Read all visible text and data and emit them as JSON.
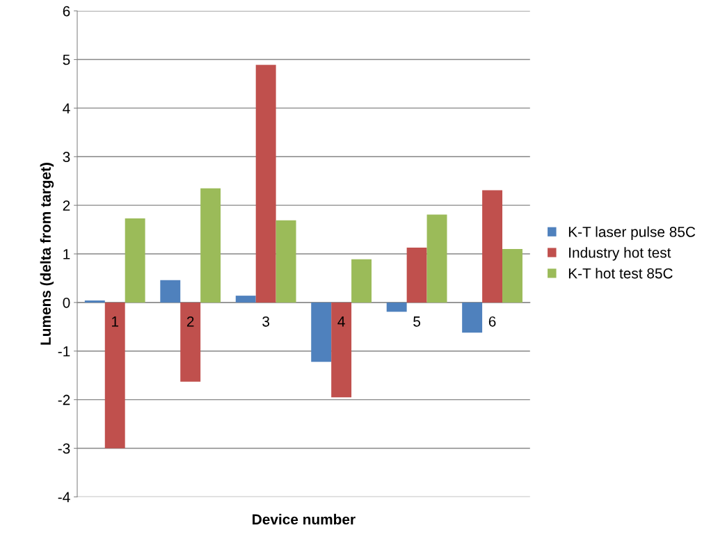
{
  "chart_data": {
    "type": "bar",
    "xlabel": "Device number",
    "ylabel": "Lumens (delta from target)",
    "categories": [
      "1",
      "2",
      "3",
      "4",
      "5",
      "6"
    ],
    "series": [
      {
        "name": "K-T laser pulse 85C",
        "color": "#4f81bd",
        "values": [
          0.04,
          0.46,
          0.14,
          -1.22,
          -0.19,
          -0.62
        ]
      },
      {
        "name": "Industry hot test",
        "color": "#c0504d",
        "values": [
          -3.0,
          -1.63,
          4.89,
          -1.95,
          1.13,
          2.31
        ]
      },
      {
        "name": "K-T hot test 85C",
        "color": "#9bbb59",
        "values": [
          1.73,
          2.35,
          1.69,
          0.89,
          1.81,
          1.1
        ]
      }
    ],
    "ylim": [
      -4,
      6
    ],
    "yticks": [
      -4,
      -3,
      -2,
      -1,
      0,
      1,
      2,
      3,
      4,
      5,
      6
    ],
    "grid": "y",
    "legend": "right"
  }
}
